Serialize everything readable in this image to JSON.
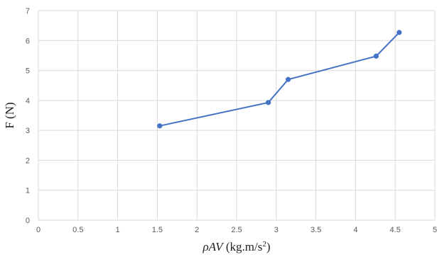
{
  "chart_data": {
    "type": "line",
    "title": "",
    "xlabel_parts": {
      "var": "ρAV",
      "unit": " (kg.m/s",
      "sup": "2",
      "close": ")"
    },
    "ylabel": "F (N)",
    "xlim": [
      0,
      5
    ],
    "ylim": [
      0,
      7
    ],
    "xticks": [
      0,
      0.5,
      1,
      1.5,
      2,
      2.5,
      3,
      3.5,
      4,
      4.5,
      5
    ],
    "yticks": [
      0,
      1,
      2,
      3,
      4,
      5,
      6,
      7
    ],
    "grid": true,
    "legend": "none",
    "series": [
      {
        "color": "#4472c4",
        "x": [
          1.53,
          2.9,
          3.15,
          4.26,
          4.55
        ],
        "y": [
          3.15,
          3.93,
          4.7,
          5.48,
          6.27
        ]
      }
    ]
  }
}
